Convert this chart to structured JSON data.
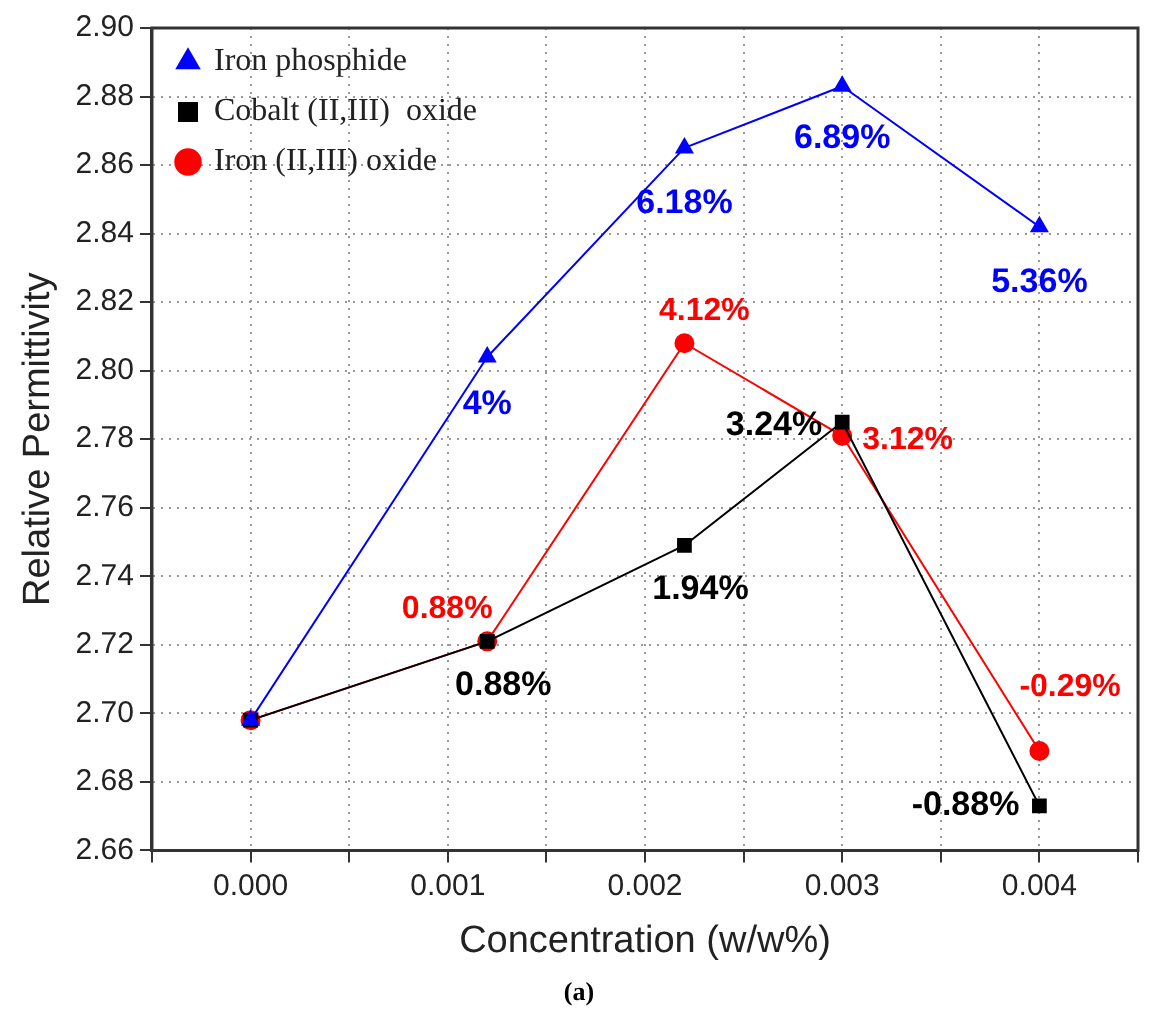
{
  "chart_data": {
    "type": "line",
    "xlabel": "Concentration (w/w%)",
    "ylabel": "Relative Permittivity",
    "annotations": [
      "(a)",
      {
        "text": "4%",
        "x": 0.0012,
        "y": 2.804
      },
      {
        "text": "6.18%",
        "x": 0.0022,
        "y": 2.865
      },
      {
        "text": "6.89%",
        "x": 0.003,
        "y": 2.883
      },
      {
        "text": "5.36%",
        "x": 0.004,
        "y": 2.842
      },
      {
        "text": "0.88%",
        "x": 0.0012,
        "y": 2.721
      },
      {
        "text": "1.94%",
        "x": 0.0022,
        "y": 2.749
      },
      {
        "text": "3.24%",
        "x": 0.003,
        "y": 2.785
      },
      {
        "text": "-0.88%",
        "x": 0.004,
        "y": 2.673
      },
      {
        "text": "0.88%",
        "x": 0.0012,
        "y": 2.721
      },
      {
        "text": "4.12%",
        "x": 0.0022,
        "y": 2.808
      },
      {
        "text": "3.12%",
        "x": 0.003,
        "y": 2.781
      },
      {
        "text": "-0.29%",
        "x": 0.004,
        "y": 2.689
      }
    ],
    "x": [
      0,
      0.0012,
      0.0022,
      0.003,
      0.004
    ],
    "xlim": [
      -0.0005,
      0.0045
    ],
    "xticks": [
      {
        "value": -0.0005,
        "label": null
      },
      {
        "value": 0,
        "label": "0.000"
      },
      {
        "value": 0.0005,
        "label": null
      },
      {
        "value": 0.001,
        "label": "0.001"
      },
      {
        "value": 0.0015,
        "label": null
      },
      {
        "value": 0.002,
        "label": "0.002"
      },
      {
        "value": 0.0025,
        "label": null
      },
      {
        "value": 0.003,
        "label": "0.003"
      },
      {
        "value": 0.0035,
        "label": null
      },
      {
        "value": 0.004,
        "label": "0.004"
      },
      {
        "value": 0.0045,
        "label": null
      }
    ],
    "ylim": [
      2.66,
      2.9
    ],
    "yticks": [
      {
        "value": 2.66,
        "label": "2.66"
      },
      {
        "value": 2.68,
        "label": "2.68"
      },
      {
        "value": 2.7,
        "label": "2.70"
      },
      {
        "value": 2.72,
        "label": "2.72"
      },
      {
        "value": 2.74,
        "label": "2.74"
      },
      {
        "value": 2.76,
        "label": "2.76"
      },
      {
        "value": 2.78,
        "label": "2.78"
      },
      {
        "value": 2.8,
        "label": "2.80"
      },
      {
        "value": 2.82,
        "label": "2.82"
      },
      {
        "value": 2.84,
        "label": "2.84"
      },
      {
        "value": 2.86,
        "label": "2.86"
      },
      {
        "value": 2.88,
        "label": "2.88"
      },
      {
        "value": 2.9,
        "label": "2.90"
      }
    ],
    "grid": true,
    "legend": "top left",
    "line_style": "solid",
    "series": [
      {
        "name": "Iron phosphide",
        "color": "#0000ff",
        "marker": "triangle",
        "values": [
          2.698,
          2.804,
          2.865,
          2.883,
          2.842
        ]
      },
      {
        "name": "Cobalt (II,III)  oxide",
        "color": "#000000",
        "marker": "square",
        "values": [
          2.698,
          2.721,
          2.749,
          2.785,
          2.673
        ]
      },
      {
        "name": "Iron (II,III) oxide",
        "color": "#ff0000",
        "marker": "circle",
        "values": [
          2.698,
          2.721,
          2.808,
          2.781,
          2.689
        ]
      }
    ]
  }
}
